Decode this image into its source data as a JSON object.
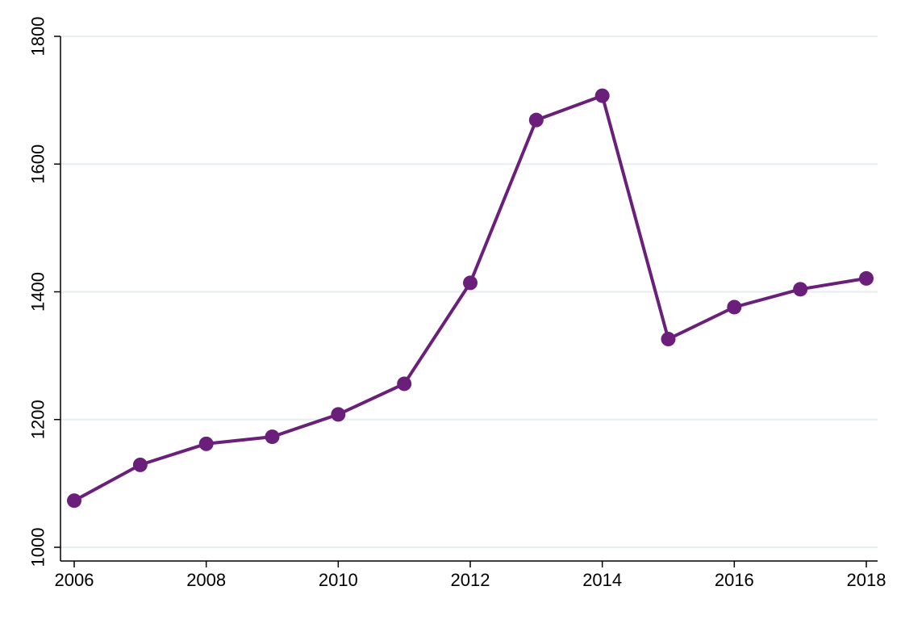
{
  "chart_data": {
    "type": "line",
    "title": "",
    "xlabel": "",
    "ylabel": "",
    "x": [
      2006,
      2007,
      2008,
      2009,
      2010,
      2011,
      2012,
      2013,
      2014,
      2015,
      2016,
      2017,
      2018
    ],
    "series": [
      {
        "values": [
          1073,
          1129,
          1162,
          1173,
          1208,
          1256,
          1414,
          1669,
          1707,
          1326,
          1376,
          1404,
          1421
        ]
      }
    ],
    "xlim": [
      2006,
      2018
    ],
    "ylim": [
      1000,
      1800
    ],
    "xticks": [
      "2006",
      "2008",
      "2010",
      "2012",
      "2014",
      "2016",
      "2018"
    ],
    "yticks": [
      "1000",
      "1200",
      "1400",
      "1600",
      "1800"
    ],
    "grid": true,
    "legend": "none",
    "colors": {
      "line": "#6a1f7a",
      "marker": "#6a1f7a",
      "grid": "#e6eef0",
      "axis": "#000000"
    }
  }
}
